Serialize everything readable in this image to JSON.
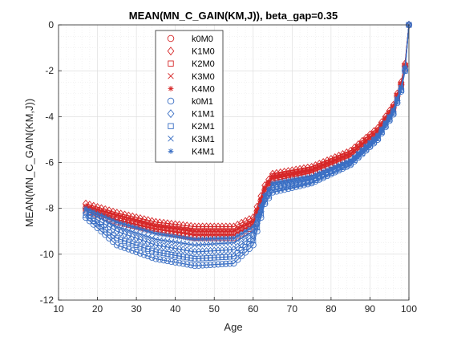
{
  "chart_data": {
    "type": "scatter",
    "title": "MEAN(MN_C_GAIN(KM,J)), beta_gap=0.35",
    "xlabel": "Age",
    "ylabel": "MEAN(MN_C_GAIN(KM,J))",
    "xlim": [
      10,
      100
    ],
    "ylim": [
      -12,
      0
    ],
    "xticks": [
      10,
      20,
      30,
      40,
      50,
      60,
      70,
      80,
      90,
      100
    ],
    "yticks": [
      -12,
      -10,
      -8,
      -6,
      -4,
      -2,
      0
    ],
    "grid": true,
    "minor_grid": true,
    "legend_position": "top-left",
    "age_range": [
      17,
      100
    ],
    "series": [
      {
        "name": "k0M0",
        "marker": "circle",
        "color": "#d62728",
        "anchors": [
          [
            17,
            -8.0
          ],
          [
            25,
            -8.4
          ],
          [
            35,
            -8.8
          ],
          [
            45,
            -9.0
          ],
          [
            55,
            -9.0
          ],
          [
            60,
            -8.6
          ],
          [
            63,
            -7.2
          ],
          [
            65,
            -6.6
          ],
          [
            75,
            -6.3
          ],
          [
            85,
            -5.6
          ],
          [
            92,
            -4.6
          ],
          [
            96,
            -3.6
          ],
          [
            98,
            -2.6
          ],
          [
            99,
            -1.8
          ],
          [
            100,
            0
          ]
        ]
      },
      {
        "name": "K1M0",
        "marker": "diamond",
        "color": "#d62728",
        "anchors": [
          [
            17,
            -7.8
          ],
          [
            25,
            -8.2
          ],
          [
            35,
            -8.6
          ],
          [
            45,
            -8.8
          ],
          [
            55,
            -8.8
          ],
          [
            60,
            -8.4
          ],
          [
            63,
            -7.0
          ],
          [
            65,
            -6.5
          ],
          [
            75,
            -6.2
          ],
          [
            85,
            -5.5
          ],
          [
            92,
            -4.5
          ],
          [
            96,
            -3.5
          ],
          [
            98,
            -2.5
          ],
          [
            99,
            -1.7
          ],
          [
            100,
            0
          ]
        ]
      },
      {
        "name": "K2M0",
        "marker": "square",
        "color": "#d62728",
        "anchors": [
          [
            17,
            -8.1
          ],
          [
            25,
            -8.6
          ],
          [
            35,
            -9.0
          ],
          [
            45,
            -9.3
          ],
          [
            55,
            -9.3
          ],
          [
            60,
            -8.8
          ],
          [
            63,
            -7.3
          ],
          [
            65,
            -6.8
          ],
          [
            75,
            -6.45
          ],
          [
            85,
            -5.75
          ],
          [
            92,
            -4.75
          ],
          [
            96,
            -3.7
          ],
          [
            98,
            -2.7
          ],
          [
            99,
            -1.9
          ],
          [
            100,
            0
          ]
        ]
      },
      {
        "name": "K3M0",
        "marker": "x",
        "color": "#d62728",
        "anchors": [
          [
            17,
            -7.95
          ],
          [
            25,
            -8.5
          ],
          [
            35,
            -8.9
          ],
          [
            45,
            -9.15
          ],
          [
            55,
            -9.15
          ],
          [
            60,
            -8.7
          ],
          [
            63,
            -7.2
          ],
          [
            65,
            -6.7
          ],
          [
            75,
            -6.35
          ],
          [
            85,
            -5.65
          ],
          [
            92,
            -4.65
          ],
          [
            96,
            -3.6
          ],
          [
            98,
            -2.6
          ],
          [
            99,
            -1.8
          ],
          [
            100,
            0
          ]
        ]
      },
      {
        "name": "K4M0",
        "marker": "asterisk",
        "color": "#d62728",
        "anchors": [
          [
            17,
            -7.9
          ],
          [
            25,
            -8.3
          ],
          [
            35,
            -8.75
          ],
          [
            45,
            -9.0
          ],
          [
            55,
            -9.0
          ],
          [
            60,
            -8.55
          ],
          [
            63,
            -7.1
          ],
          [
            65,
            -6.6
          ],
          [
            75,
            -6.3
          ],
          [
            85,
            -5.6
          ],
          [
            92,
            -4.6
          ],
          [
            96,
            -3.55
          ],
          [
            98,
            -2.55
          ],
          [
            99,
            -1.75
          ],
          [
            100,
            0
          ]
        ]
      },
      {
        "name": "k0M1",
        "marker": "circle",
        "color": "#3a6fc4",
        "anchors": [
          [
            17,
            -8.4
          ],
          [
            25,
            -9.6
          ],
          [
            35,
            -10.2
          ],
          [
            45,
            -10.5
          ],
          [
            55,
            -10.4
          ],
          [
            60,
            -9.6
          ],
          [
            63,
            -7.8
          ],
          [
            65,
            -7.3
          ],
          [
            75,
            -6.9
          ],
          [
            85,
            -6.1
          ],
          [
            92,
            -5.0
          ],
          [
            96,
            -3.9
          ],
          [
            98,
            -2.9
          ],
          [
            99,
            -2.0
          ],
          [
            100,
            0
          ]
        ]
      },
      {
        "name": "K1M1",
        "marker": "diamond",
        "color": "#3a6fc4",
        "anchors": [
          [
            17,
            -8.2
          ],
          [
            25,
            -9.0
          ],
          [
            35,
            -9.6
          ],
          [
            45,
            -9.9
          ],
          [
            55,
            -9.8
          ],
          [
            60,
            -9.2
          ],
          [
            63,
            -7.6
          ],
          [
            65,
            -7.1
          ],
          [
            75,
            -6.75
          ],
          [
            85,
            -6.0
          ],
          [
            92,
            -4.9
          ],
          [
            96,
            -3.8
          ],
          [
            98,
            -2.8
          ],
          [
            99,
            -1.95
          ],
          [
            100,
            0
          ]
        ]
      },
      {
        "name": "K2M1",
        "marker": "square",
        "color": "#3a6fc4",
        "anchors": [
          [
            17,
            -8.3
          ],
          [
            25,
            -9.3
          ],
          [
            35,
            -9.9
          ],
          [
            45,
            -10.2
          ],
          [
            55,
            -10.1
          ],
          [
            60,
            -9.4
          ],
          [
            63,
            -7.7
          ],
          [
            65,
            -7.2
          ],
          [
            75,
            -6.85
          ],
          [
            85,
            -6.05
          ],
          [
            92,
            -4.95
          ],
          [
            96,
            -3.85
          ],
          [
            98,
            -2.85
          ],
          [
            99,
            -2.0
          ],
          [
            100,
            0
          ]
        ]
      },
      {
        "name": "K3M1",
        "marker": "x",
        "color": "#3a6fc4",
        "anchors": [
          [
            17,
            -8.1
          ],
          [
            25,
            -8.8
          ],
          [
            35,
            -9.35
          ],
          [
            45,
            -9.6
          ],
          [
            55,
            -9.5
          ],
          [
            60,
            -9.0
          ],
          [
            63,
            -7.5
          ],
          [
            65,
            -7.0
          ],
          [
            75,
            -6.7
          ],
          [
            85,
            -5.95
          ],
          [
            92,
            -4.85
          ],
          [
            96,
            -3.75
          ],
          [
            98,
            -2.75
          ],
          [
            99,
            -1.9
          ],
          [
            100,
            0
          ]
        ]
      },
      {
        "name": "K4M1",
        "marker": "asterisk",
        "color": "#3a6fc4",
        "anchors": [
          [
            17,
            -8.0
          ],
          [
            25,
            -8.6
          ],
          [
            35,
            -9.1
          ],
          [
            45,
            -9.35
          ],
          [
            55,
            -9.3
          ],
          [
            60,
            -8.8
          ],
          [
            63,
            -7.4
          ],
          [
            65,
            -6.9
          ],
          [
            75,
            -6.6
          ],
          [
            85,
            -5.9
          ],
          [
            92,
            -4.8
          ],
          [
            96,
            -3.7
          ],
          [
            98,
            -2.7
          ],
          [
            99,
            -1.85
          ],
          [
            100,
            0
          ]
        ]
      }
    ]
  }
}
